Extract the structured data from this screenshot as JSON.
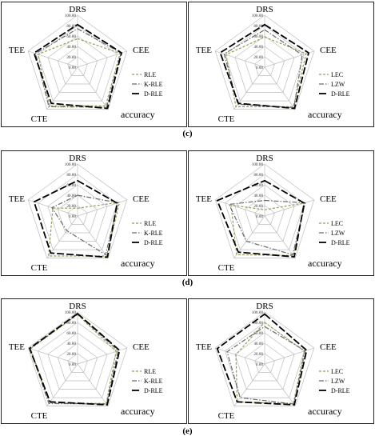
{
  "subfigure_labels": [
    "(c)",
    "(d)",
    "(e)"
  ],
  "chart_data": [
    {
      "type": "radar",
      "panel": "c-left",
      "axes": [
        "DRS",
        "CEE",
        "accuracy",
        "CTE",
        "TEE"
      ],
      "tick_labels": [
        "0.00",
        "20.00",
        "40.00",
        "60.00",
        "80.00",
        "100.00"
      ],
      "rlim": [
        0,
        100
      ],
      "legend_position": "right",
      "series": [
        {
          "name": "RLE",
          "values": [
            55,
            86,
            92,
            92,
            80
          ],
          "color": "#9a9a5a",
          "dash": "3,2",
          "width": 1.2
        },
        {
          "name": "K-RLE",
          "values": [
            74,
            88,
            95,
            94,
            85
          ],
          "color": "#6b6b6b",
          "dash": "6,2,1.5,2",
          "width": 1.2
        },
        {
          "name": "D-RLE",
          "values": [
            82,
            89,
            98,
            86,
            88
          ],
          "color": "#000000",
          "dash": "9,3",
          "width": 1.8
        }
      ]
    },
    {
      "type": "radar",
      "panel": "c-right",
      "axes": [
        "DRS",
        "CEE",
        "accuracy",
        "CTE",
        "TEE"
      ],
      "tick_labels": [
        "0.00",
        "20.00",
        "40.00",
        "60.00",
        "80.00",
        "100.00"
      ],
      "rlim": [
        0,
        100
      ],
      "legend_position": "right",
      "series": [
        {
          "name": "LEC",
          "values": [
            58,
            84,
            94,
            94,
            78
          ],
          "color": "#9a9a5a",
          "dash": "3,2",
          "width": 1.2
        },
        {
          "name": "LZW",
          "values": [
            72,
            76,
            96,
            88,
            82
          ],
          "color": "#6b6b6b",
          "dash": "6,2,1.5,2",
          "width": 1.2
        },
        {
          "name": "D-RLE",
          "values": [
            82,
            89,
            98,
            86,
            90
          ],
          "color": "#000000",
          "dash": "9,3",
          "width": 1.8
        }
      ]
    },
    {
      "type": "radar",
      "panel": "d-left",
      "axes": [
        "DRS",
        "CEE",
        "accuracy",
        "CTE",
        "TEE"
      ],
      "tick_labels": [
        "0.00",
        "20.00",
        "40.00",
        "60.00",
        "80.00",
        "100.00"
      ],
      "rlim": [
        0,
        100
      ],
      "legend_position": "right",
      "series": [
        {
          "name": "RLE",
          "values": [
            15,
            85,
            95,
            95,
            50
          ],
          "color": "#9a9a5a",
          "dash": "3,2",
          "width": 1.2
        },
        {
          "name": "K-RLE",
          "values": [
            40,
            82,
            92,
            35,
            52
          ],
          "color": "#6b6b6b",
          "dash": "6,2,1.5,2",
          "width": 1.2
        },
        {
          "name": "D-RLE",
          "values": [
            68,
            80,
            98,
            88,
            88
          ],
          "color": "#000000",
          "dash": "9,3",
          "width": 1.8
        }
      ]
    },
    {
      "type": "radar",
      "panel": "d-right",
      "axes": [
        "DRS",
        "CEE",
        "accuracy",
        "CTE",
        "TEE"
      ],
      "tick_labels": [
        "0.00",
        "20.00",
        "40.00",
        "60.00",
        "80.00",
        "100.00"
      ],
      "rlim": [
        0,
        100
      ],
      "legend_position": "right",
      "series": [
        {
          "name": "LEC",
          "values": [
            12,
            82,
            94,
            92,
            68
          ],
          "color": "#9a9a5a",
          "dash": "3,2",
          "width": 1.2
        },
        {
          "name": "LZW",
          "values": [
            30,
            82,
            92,
            60,
            72
          ],
          "color": "#6b6b6b",
          "dash": "6,2,1.5,2",
          "width": 1.2
        },
        {
          "name": "D-RLE",
          "values": [
            68,
            80,
            97,
            86,
            96
          ],
          "color": "#000000",
          "dash": "9,3",
          "width": 1.8
        }
      ]
    },
    {
      "type": "radar",
      "panel": "e-left",
      "axes": [
        "DRS",
        "CEE",
        "accuracy",
        "CTE",
        "TEE"
      ],
      "tick_labels": [
        "0.00",
        "20.00",
        "40.00",
        "60.00",
        "80.00",
        "100.00"
      ],
      "rlim": [
        0,
        100
      ],
      "legend_position": "right",
      "series": [
        {
          "name": "RLE",
          "values": [
            95,
            78,
            94,
            92,
            95
          ],
          "color": "#9a9a5a",
          "dash": "3,2",
          "width": 1.2
        },
        {
          "name": "K-RLE",
          "values": [
            96,
            82,
            95,
            94,
            96
          ],
          "color": "#6b6b6b",
          "dash": "6,2,1.5,2",
          "width": 1.2
        },
        {
          "name": "D-RLE",
          "values": [
            97,
            85,
            97,
            90,
            97
          ],
          "color": "#000000",
          "dash": "9,3",
          "width": 1.8
        }
      ]
    },
    {
      "type": "radar",
      "panel": "e-right",
      "axes": [
        "DRS",
        "CEE",
        "accuracy",
        "CTE",
        "TEE"
      ],
      "tick_labels": [
        "0.00",
        "20.00",
        "40.00",
        "60.00",
        "80.00",
        "100.00"
      ],
      "rlim": [
        0,
        100
      ],
      "legend_position": "right",
      "series": [
        {
          "name": "LEC",
          "values": [
            80,
            80,
            94,
            90,
            58
          ],
          "color": "#9a9a5a",
          "dash": "3,2",
          "width": 1.2
        },
        {
          "name": "LZW",
          "values": [
            72,
            82,
            95,
            80,
            76
          ],
          "color": "#6b6b6b",
          "dash": "6,2,1.5,2",
          "width": 1.2
        },
        {
          "name": "D-RLE",
          "values": [
            96,
            85,
            97,
            90,
            96
          ],
          "color": "#000000",
          "dash": "9,3",
          "width": 1.8
        }
      ]
    }
  ]
}
